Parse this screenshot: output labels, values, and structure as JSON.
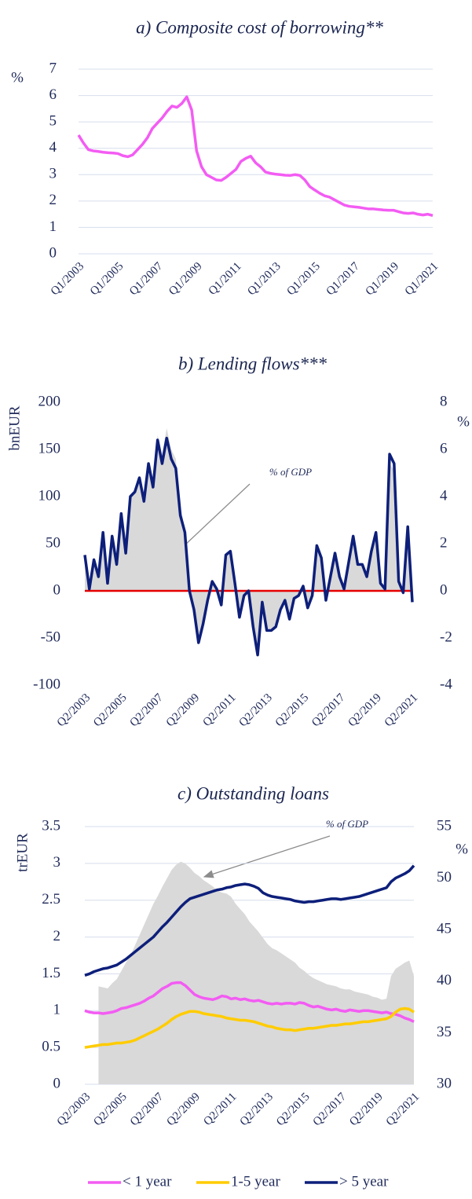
{
  "chart_data": [
    {
      "type": "line",
      "title": "a) Composite cost of borrowing**",
      "ylabel": "%",
      "categories": [
        "Q1/2003",
        null,
        null,
        null,
        null,
        null,
        null,
        null,
        "Q1/2005",
        null,
        null,
        null,
        null,
        null,
        null,
        null,
        "Q1/2007",
        null,
        null,
        null,
        null,
        null,
        null,
        null,
        "Q1/2009",
        null,
        null,
        null,
        null,
        null,
        null,
        null,
        "Q1/2011",
        null,
        null,
        null,
        null,
        null,
        null,
        null,
        "Q1/2013",
        null,
        null,
        null,
        null,
        null,
        null,
        null,
        "Q1/2015",
        null,
        null,
        null,
        null,
        null,
        null,
        null,
        "Q1/2017",
        null,
        null,
        null,
        null,
        null,
        null,
        null,
        "Q1/2019",
        null,
        null,
        null,
        null,
        null,
        null,
        null,
        "Q1/2021"
      ],
      "values": [
        4.5,
        4.2,
        3.95,
        3.9,
        3.88,
        3.85,
        3.83,
        3.82,
        3.8,
        3.72,
        3.68,
        3.75,
        3.95,
        4.15,
        4.4,
        4.75,
        4.95,
        5.15,
        5.4,
        5.6,
        5.55,
        5.7,
        5.95,
        5.45,
        3.9,
        3.3,
        3.0,
        2.9,
        2.8,
        2.78,
        2.9,
        3.05,
        3.2,
        3.5,
        3.62,
        3.7,
        3.45,
        3.3,
        3.1,
        3.05,
        3.02,
        3.0,
        2.98,
        2.97,
        3.0,
        2.97,
        2.8,
        2.55,
        2.42,
        2.3,
        2.2,
        2.15,
        2.05,
        1.95,
        1.85,
        1.8,
        1.78,
        1.76,
        1.73,
        1.7,
        1.7,
        1.68,
        1.66,
        1.65,
        1.65,
        1.6,
        1.55,
        1.53,
        1.55,
        1.5,
        1.47,
        1.5,
        1.45
      ],
      "color": "#f35cf3",
      "ylim": [
        0,
        7
      ],
      "yticks": [
        0,
        1,
        2,
        3,
        4,
        5,
        6,
        7
      ],
      "grid": true
    },
    {
      "type": "line",
      "title": "b) Lending flows***",
      "ylabel": "bnEUR",
      "y2label": "%",
      "annotation": "% of GDP",
      "categories": [
        "Q2/2003",
        null,
        null,
        null,
        null,
        null,
        null,
        null,
        "Q2/2005",
        null,
        null,
        null,
        null,
        null,
        null,
        null,
        "Q2/2007",
        null,
        null,
        null,
        null,
        null,
        null,
        null,
        "Q2/2009",
        null,
        null,
        null,
        null,
        null,
        null,
        null,
        "Q2/2011",
        null,
        null,
        null,
        null,
        null,
        null,
        null,
        "Q2/2013",
        null,
        null,
        null,
        null,
        null,
        null,
        null,
        "Q2/2015",
        null,
        null,
        null,
        null,
        null,
        null,
        null,
        "Q2/2017",
        null,
        null,
        null,
        null,
        null,
        null,
        null,
        "Q2/2019",
        null,
        null,
        null,
        null,
        null,
        null,
        null,
        "Q2/2021"
      ],
      "values": [
        38,
        2,
        33,
        15,
        62,
        8,
        58,
        28,
        82,
        40,
        100,
        105,
        120,
        95,
        135,
        110,
        160,
        135,
        162,
        140,
        130,
        80,
        62,
        0,
        -20,
        -55,
        -35,
        -10,
        10,
        2,
        -15,
        38,
        42,
        8,
        -28,
        -5,
        0,
        -38,
        -68,
        -12,
        -42,
        -42,
        -38,
        -20,
        -10,
        -30,
        -8,
        -5,
        5,
        -18,
        -5,
        48,
        35,
        -10,
        15,
        40,
        15,
        2,
        30,
        58,
        28,
        28,
        15,
        42,
        62,
        8,
        2,
        145,
        135,
        10,
        -2,
        68,
        -12
      ],
      "color": "#0d1f7a",
      "area": {
        "axis": "y2",
        "color": "#d9d9d9",
        "values": [
          1.6,
          0.3,
          1.3,
          0.8,
          2.4,
          0.6,
          2.3,
          1.3,
          3.2,
          1.8,
          3.9,
          4.2,
          4.8,
          4.0,
          5.4,
          4.8,
          6.6,
          5.8,
          6.9,
          6.0,
          5.6,
          3.6,
          2.6,
          0.2,
          -0.9,
          -2.2,
          -1.5,
          -0.5,
          0.4,
          0.1,
          -0.6,
          1.5,
          1.7,
          0.3,
          -1.1,
          -0.2,
          0,
          -1.5,
          -2.5,
          -0.5,
          -1.6,
          -1.6,
          -1.5,
          -0.8,
          -0.4,
          -1.2,
          -0.3,
          -0.2,
          0.2,
          -0.7,
          -0.2,
          1.9,
          1.4,
          -0.4,
          0.6,
          1.6,
          0.6,
          0.1,
          1.2,
          2.3,
          1.1,
          1.1,
          0.6,
          1.7,
          2.4,
          0.3,
          0.1,
          5.4,
          5.1,
          0.4,
          -0.1,
          2.6,
          -0.5
        ]
      },
      "ylim": [
        -100,
        200
      ],
      "yticks": [
        -100,
        -50,
        0,
        50,
        100,
        150,
        200
      ],
      "y2lim": [
        -4,
        8
      ],
      "y2ticks": [
        -4,
        -2,
        0,
        2,
        4,
        6,
        8
      ],
      "grid": false,
      "zero_line_color": "#e60000"
    },
    {
      "type": "line",
      "title": "c) Outstanding loans",
      "ylabel": "trEUR",
      "y2label": "%",
      "annotation": "% of GDP",
      "categories": [
        "Q2/2003",
        null,
        null,
        null,
        null,
        null,
        null,
        null,
        "Q2/2005",
        null,
        null,
        null,
        null,
        null,
        null,
        null,
        "Q2/2007",
        null,
        null,
        null,
        null,
        null,
        null,
        null,
        "Q2/2009",
        null,
        null,
        null,
        null,
        null,
        null,
        null,
        "Q2/2011",
        null,
        null,
        null,
        null,
        null,
        null,
        null,
        "Q2/2013",
        null,
        null,
        null,
        null,
        null,
        null,
        null,
        "Q2/2015",
        null,
        null,
        null,
        null,
        null,
        null,
        null,
        "Q2/2017",
        null,
        null,
        null,
        null,
        null,
        null,
        null,
        "Q2/2019",
        null,
        null,
        null,
        null,
        null,
        null,
        null,
        "Q2/2021"
      ],
      "area": {
        "axis": "y2",
        "color": "#d9d9d9",
        "values": [
          null,
          null,
          null,
          39.5,
          39.4,
          39.3,
          39.8,
          40.2,
          41,
          41.8,
          42.5,
          43.5,
          44.5,
          45.5,
          46.5,
          47.5,
          48.3,
          49.2,
          50,
          50.8,
          51.3,
          51.6,
          51.4,
          51,
          50.5,
          50.2,
          49.8,
          49.5,
          49.2,
          48.8,
          48.6,
          48.5,
          48.2,
          47.5,
          47,
          46.5,
          45.8,
          45.3,
          44.8,
          44.2,
          43.6,
          43.2,
          43,
          42.7,
          42.4,
          42.1,
          41.8,
          41.3,
          41,
          40.6,
          40.3,
          40.1,
          39.9,
          39.7,
          39.6,
          39.5,
          39.3,
          39.2,
          39.2,
          39,
          38.9,
          38.8,
          38.7,
          38.5,
          38.4,
          38.2,
          38.3,
          40.5,
          41.2,
          41.5,
          41.8,
          42,
          40.5
        ]
      },
      "series": [
        {
          "name": "< 1 year",
          "color": "#f35cf3",
          "values": [
            1.0,
            0.98,
            0.97,
            0.97,
            0.96,
            0.97,
            0.98,
            1.0,
            1.03,
            1.04,
            1.06,
            1.08,
            1.1,
            1.13,
            1.17,
            1.2,
            1.25,
            1.3,
            1.33,
            1.37,
            1.38,
            1.38,
            1.34,
            1.28,
            1.22,
            1.19,
            1.17,
            1.16,
            1.15,
            1.17,
            1.2,
            1.19,
            1.16,
            1.17,
            1.15,
            1.16,
            1.14,
            1.13,
            1.14,
            1.12,
            1.1,
            1.09,
            1.1,
            1.09,
            1.1,
            1.1,
            1.09,
            1.11,
            1.1,
            1.07,
            1.05,
            1.06,
            1.04,
            1.02,
            1.01,
            1.02,
            1.0,
            0.99,
            1.01,
            1.0,
            0.99,
            1.0,
            1.0,
            0.99,
            0.98,
            0.97,
            0.98,
            0.96,
            0.95,
            0.93,
            0.9,
            0.88,
            0.85
          ]
        },
        {
          "name": "1-5 year",
          "color": "#ffcc00",
          "values": [
            0.5,
            0.51,
            0.52,
            0.53,
            0.54,
            0.54,
            0.55,
            0.56,
            0.56,
            0.57,
            0.58,
            0.6,
            0.63,
            0.66,
            0.69,
            0.72,
            0.75,
            0.79,
            0.83,
            0.88,
            0.92,
            0.95,
            0.97,
            0.99,
            0.99,
            0.98,
            0.96,
            0.95,
            0.94,
            0.93,
            0.92,
            0.9,
            0.89,
            0.88,
            0.87,
            0.87,
            0.86,
            0.85,
            0.83,
            0.81,
            0.79,
            0.78,
            0.76,
            0.75,
            0.74,
            0.74,
            0.73,
            0.74,
            0.75,
            0.76,
            0.76,
            0.77,
            0.78,
            0.79,
            0.8,
            0.8,
            0.81,
            0.82,
            0.82,
            0.83,
            0.84,
            0.85,
            0.85,
            0.86,
            0.87,
            0.88,
            0.89,
            0.92,
            0.98,
            1.02,
            1.03,
            1.02,
            0.98
          ]
        },
        {
          "name": "> 5 year",
          "color": "#0d1f7a",
          "values": [
            1.48,
            1.5,
            1.53,
            1.55,
            1.57,
            1.58,
            1.6,
            1.62,
            1.66,
            1.7,
            1.75,
            1.8,
            1.85,
            1.9,
            1.95,
            2.0,
            2.07,
            2.14,
            2.2,
            2.27,
            2.34,
            2.41,
            2.47,
            2.52,
            2.54,
            2.56,
            2.58,
            2.6,
            2.62,
            2.64,
            2.65,
            2.67,
            2.68,
            2.7,
            2.71,
            2.72,
            2.71,
            2.69,
            2.66,
            2.6,
            2.57,
            2.55,
            2.54,
            2.53,
            2.52,
            2.51,
            2.49,
            2.48,
            2.47,
            2.48,
            2.48,
            2.49,
            2.5,
            2.51,
            2.52,
            2.52,
            2.51,
            2.52,
            2.53,
            2.54,
            2.55,
            2.57,
            2.59,
            2.61,
            2.63,
            2.65,
            2.67,
            2.75,
            2.8,
            2.83,
            2.86,
            2.9,
            2.97
          ]
        }
      ],
      "ylim": [
        0,
        3.5
      ],
      "yticks": [
        0,
        0.5,
        1,
        1.5,
        2,
        2.5,
        3,
        3.5
      ],
      "y2lim": [
        30,
        55
      ],
      "y2ticks": [
        30,
        35,
        40,
        45,
        50,
        55
      ],
      "grid": true,
      "legend": "bottom"
    }
  ]
}
